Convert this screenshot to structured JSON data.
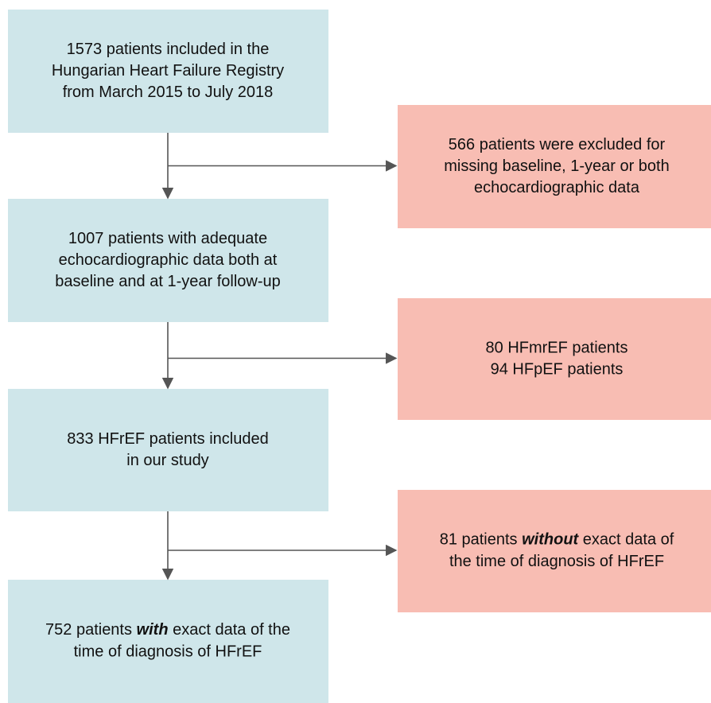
{
  "main": [
    {
      "lines": [
        "1573 patients included in the",
        "Hungarian Heart Failure Registry",
        "from March 2015 to July 2018"
      ]
    },
    {
      "lines": [
        "1007 patients with adequate",
        "echocardiographic data both at",
        "baseline and at 1-year follow-up"
      ]
    },
    {
      "lines": [
        "833 HFrEF patients included",
        "in our study"
      ]
    },
    {
      "lines": [
        {
          "parts": [
            "752 patients ",
            "with",
            " exact data of the"
          ],
          "emph": 1
        },
        "time of diagnosis of HFrEF"
      ]
    }
  ],
  "excluded": [
    {
      "lines": [
        "566 patients were excluded for",
        "missing baseline, 1-year or both",
        "echocardiographic data"
      ]
    },
    {
      "lines": [
        "80 HFmrEF patients",
        "94 HFpEF patients"
      ]
    },
    {
      "lines": [
        {
          "parts": [
            "81 patients ",
            "without",
            " exact data of"
          ],
          "emph": 1
        },
        "the time of diagnosis of HFrEF"
      ]
    }
  ]
}
